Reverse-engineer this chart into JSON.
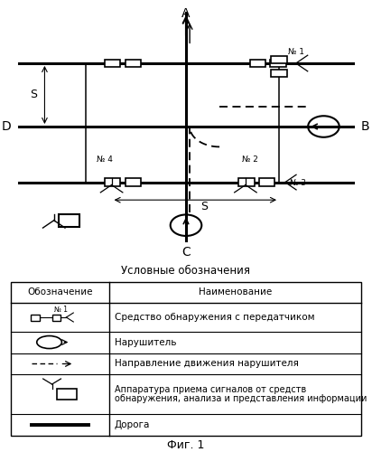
{
  "fig_caption": "Фиг. 1",
  "legend_title": "Условные обозначения",
  "bg_color": "#ffffff",
  "road_color": "#000000",
  "road_lw": 2.2,
  "thin_lw": 0.8,
  "header1": "Обозначение",
  "header2": "Наименование",
  "row1_text": "Средство обнаружения с передатчиком",
  "row2_text": "Нарушитель",
  "row3_text": "Направление движения нарушителя",
  "row4_text": "Аппаратура приема сигналов от средств обнаружения, анализа и представления информации",
  "row5_text": "Дорога"
}
